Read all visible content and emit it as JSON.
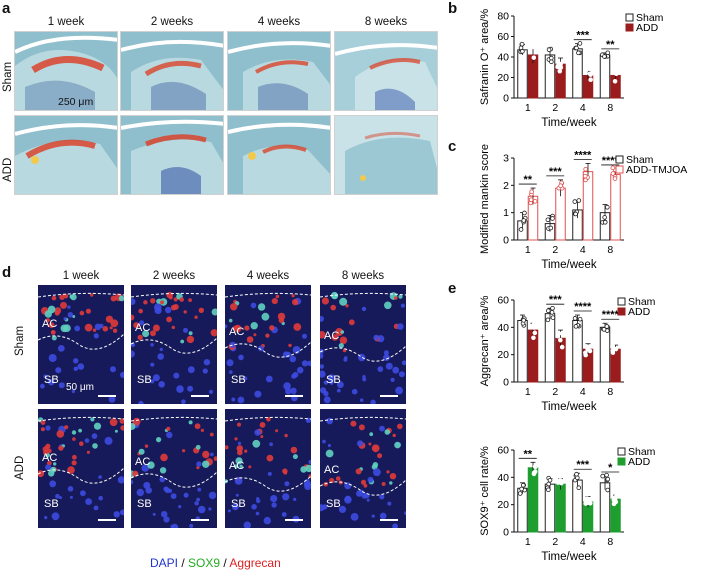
{
  "panel_letters": {
    "a": "a",
    "b": "b",
    "c": "c",
    "d": "d",
    "e": "e"
  },
  "panel_a": {
    "columns": [
      "1 week",
      "2 weeks",
      "4 weeks",
      "8 weeks"
    ],
    "rows": [
      "Sham",
      "ADD"
    ],
    "scale_label": "250 μm"
  },
  "panel_d": {
    "columns": [
      "1 week",
      "2 weeks",
      "4 weeks",
      "8 weeks"
    ],
    "rows": [
      "Sham",
      "ADD"
    ],
    "scale_label": "50 μm",
    "region_labels": {
      "ac": "AC",
      "sb": "SB"
    },
    "stain_legend": [
      {
        "text": "DAPI",
        "color": "#2233cc"
      },
      {
        "text": " / ",
        "color": "#111111"
      },
      {
        "text": "SOX9",
        "color": "#22aa22"
      },
      {
        "text": " / ",
        "color": "#111111"
      },
      {
        "text": "Aggrecan",
        "color": "#dd2222"
      }
    ]
  },
  "chart_data": [
    {
      "panel": "b",
      "type": "bar",
      "categories": [
        "1",
        "2",
        "4",
        "8"
      ],
      "xlabel": "Time/week",
      "ylabel": "Safranin O⁺ area/%",
      "ylim": [
        0,
        80
      ],
      "yticks": [
        0,
        20,
        40,
        60,
        80
      ],
      "legend_position": "top-right",
      "series": [
        {
          "name": "Sham",
          "color": "#ffffff",
          "edge": "#222222",
          "values": [
            47,
            42,
            48,
            42
          ],
          "errors": [
            5,
            7,
            5,
            2
          ]
        },
        {
          "name": "ADD",
          "color": "#9b1c1c",
          "edge": "#9b1c1c",
          "values": [
            42,
            33,
            22,
            22
          ],
          "errors": [
            8,
            6,
            4,
            5
          ]
        }
      ],
      "significance": [
        "",
        "",
        "***",
        "**"
      ]
    },
    {
      "panel": "c",
      "type": "bar",
      "categories": [
        "1",
        "2",
        "4",
        "8"
      ],
      "xlabel": "Time/week",
      "ylabel": "Modified mankin score",
      "ylim": [
        0,
        3
      ],
      "yticks": [
        0,
        1,
        2,
        3
      ],
      "legend_position": "top-right",
      "series": [
        {
          "name": "Sham",
          "color": "#ffffff",
          "edge": "#222222",
          "values": [
            0.7,
            0.6,
            1.1,
            1.0
          ],
          "errors": [
            0.3,
            0.3,
            0.3,
            0.3
          ]
        },
        {
          "name": "ADD-TMJOA",
          "color": "#ffffff",
          "edge": "#e05050",
          "values": [
            1.6,
            1.9,
            2.5,
            2.4
          ],
          "errors": [
            0.3,
            0.3,
            0.3,
            0.2
          ]
        }
      ],
      "significance": [
        "**",
        "***",
        "****",
        "****"
      ]
    },
    {
      "panel": "e-top",
      "type": "bar",
      "categories": [
        "1",
        "2",
        "4",
        "8"
      ],
      "xlabel": "Time/week",
      "ylabel": "Aggrecan⁺ area/%",
      "ylim": [
        0,
        60
      ],
      "yticks": [
        0,
        20,
        40,
        60
      ],
      "legend_position": "top-right",
      "series": [
        {
          "name": "Sham",
          "color": "#ffffff",
          "edge": "#222222",
          "values": [
            45,
            50,
            45,
            40
          ],
          "errors": [
            4,
            4,
            4,
            3
          ]
        },
        {
          "name": "ADD",
          "color": "#9b1c1c",
          "edge": "#9b1c1c",
          "values": [
            38,
            32,
            24,
            24
          ],
          "errors": [
            5,
            6,
            4,
            3
          ]
        }
      ],
      "significance": [
        "",
        "***",
        "****",
        "****"
      ]
    },
    {
      "panel": "e-bottom",
      "type": "bar",
      "categories": [
        "1",
        "2",
        "4",
        "8"
      ],
      "xlabel": "Time/week",
      "ylabel": "SOX9⁺ cell rate/%",
      "ylim": [
        0,
        60
      ],
      "yticks": [
        0,
        20,
        40,
        60
      ],
      "legend_position": "top-right",
      "series": [
        {
          "name": "Sham",
          "color": "#ffffff",
          "edge": "#222222",
          "values": [
            32,
            35,
            38,
            36
          ],
          "errors": [
            4,
            4,
            5,
            5
          ]
        },
        {
          "name": "ADD",
          "color": "#1f9e30",
          "edge": "#1f9e30",
          "values": [
            47,
            35,
            22,
            24
          ],
          "errors": [
            4,
            4,
            4,
            3
          ]
        }
      ],
      "significance": [
        "**",
        "",
        "***",
        "*"
      ]
    }
  ]
}
